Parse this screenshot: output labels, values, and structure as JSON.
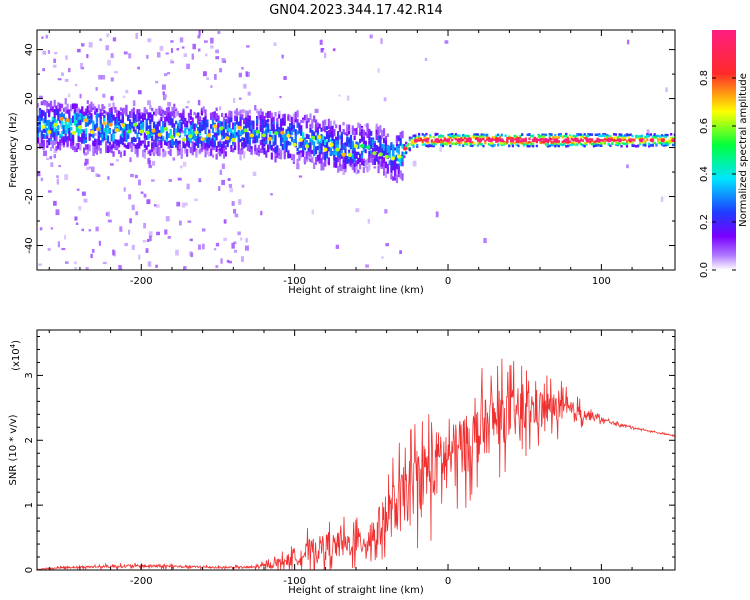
{
  "title": "GN04.2023.344.17.42.R14",
  "chart_data": [
    {
      "type": "heatmap",
      "xlabel": "Height of straight line (km)",
      "ylabel": "Frequency (Hz)",
      "xlim": [
        -268,
        148
      ],
      "ylim": [
        -50,
        48
      ],
      "xticks": [
        -200,
        -100,
        0,
        100
      ],
      "yticks": [
        40,
        20,
        0,
        -20,
        -40
      ],
      "grid": false,
      "colorbar": {
        "label": "Normalized spectral amplitude",
        "range": [
          0,
          1
        ],
        "ticks": [
          0.0,
          0.2,
          0.4,
          0.6,
          0.8
        ],
        "colormap": [
          "#ffffff",
          "#7a00ff",
          "#1e3cff",
          "#00e5ff",
          "#00ff3c",
          "#ffff00",
          "#ff2a2a",
          "#ff1e82"
        ]
      },
      "ridge": {
        "x": [
          -268,
          -250,
          -230,
          -210,
          -190,
          -170,
          -150,
          -130,
          -110,
          -90,
          -70,
          -60,
          -50,
          -40,
          -35,
          -30,
          -25,
          -20,
          -10,
          0,
          20,
          50,
          80,
          100,
          120,
          148
        ],
        "center_hz": [
          9,
          9,
          8,
          7,
          7,
          6,
          6,
          6,
          5,
          3,
          0,
          -1,
          1,
          -2,
          -4,
          -2,
          2,
          3,
          3,
          3,
          3,
          3,
          3,
          3,
          3,
          3
        ],
        "amplitude": [
          0.4,
          0.45,
          0.45,
          0.4,
          0.4,
          0.4,
          0.4,
          0.35,
          0.4,
          0.4,
          0.4,
          0.35,
          0.3,
          0.35,
          0.4,
          0.5,
          0.7,
          0.85,
          0.9,
          0.95,
          0.98,
          1.0,
          1.0,
          0.9,
          0.8,
          0.7
        ]
      }
    },
    {
      "type": "line",
      "xlabel": "Height of straight line (km)",
      "ylabel": "SNR (10 * v/v)",
      "yscale_label": "(x10",
      "yscale_exp": "4",
      "xlim": [
        -268,
        148
      ],
      "ylim": [
        0,
        3.7
      ],
      "xticks": [
        -200,
        -100,
        0,
        100
      ],
      "yticks": [
        0,
        1,
        2,
        3
      ],
      "grid": false,
      "color": "#f03030",
      "series": [
        {
          "x": [
            -268,
            -250,
            -230,
            -210,
            -190,
            -170,
            -150,
            -130,
            -120,
            -110,
            -100,
            -90,
            -80,
            -70,
            -60,
            -50,
            -40,
            -30,
            -20,
            -10,
            0,
            10,
            20,
            30,
            40,
            50,
            60,
            70,
            80,
            90,
            100,
            110,
            120,
            130,
            140,
            148
          ],
          "y": [
            0.01,
            0.04,
            0.05,
            0.06,
            0.06,
            0.05,
            0.04,
            0.04,
            0.06,
            0.12,
            0.18,
            0.3,
            0.35,
            0.38,
            0.42,
            0.5,
            0.8,
            1.1,
            1.4,
            1.6,
            1.75,
            1.9,
            2.1,
            2.3,
            2.4,
            2.45,
            2.5,
            2.5,
            2.45,
            2.4,
            2.32,
            2.25,
            2.2,
            2.15,
            2.1,
            2.07
          ],
          "noise": [
            0.01,
            0.03,
            0.04,
            0.05,
            0.05,
            0.04,
            0.03,
            0.04,
            0.08,
            0.15,
            0.25,
            0.4,
            0.45,
            0.45,
            0.45,
            0.6,
            0.8,
            1.0,
            1.1,
            1.2,
            1.0,
            1.0,
            1.0,
            0.95,
            0.9,
            0.8,
            0.65,
            0.5,
            0.35,
            0.2,
            0.08,
            0.04,
            0.03,
            0.02,
            0.02,
            0.02
          ]
        }
      ]
    }
  ]
}
